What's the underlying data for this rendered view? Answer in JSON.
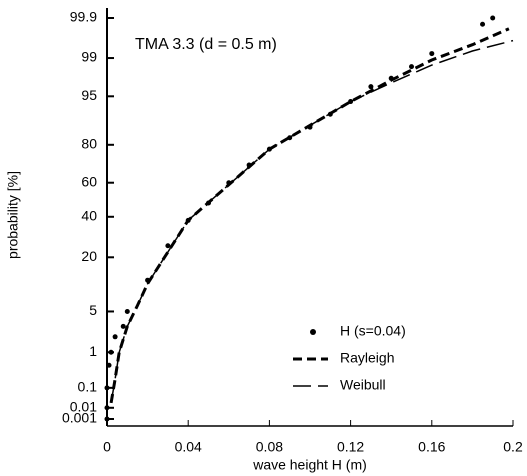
{
  "chart_data": {
    "type": "scatter",
    "title": "TMA 3.3 (d = 0.5 m)",
    "xlabel": "wave height H (m)",
    "ylabel": "probability [%]",
    "xlim": [
      0,
      0.2
    ],
    "xticks": [
      0,
      0.04,
      0.08,
      0.12,
      0.16,
      0.2
    ],
    "ylim": [
      0.001,
      99.9
    ],
    "yticks": [
      0.001,
      0.01,
      0.1,
      1,
      5,
      20,
      40,
      60,
      80,
      95,
      99,
      99.9
    ],
    "yscale": "probability",
    "legend": "lower right",
    "series": [
      {
        "name": "H (s=0.04)",
        "color": "#000000",
        "style": "points",
        "x": [
          0,
          0,
          0,
          0.001,
          0.002,
          0.004,
          0.008,
          0.01,
          0.02,
          0.03,
          0.04,
          0.05,
          0.06,
          0.07,
          0.08,
          0.09,
          0.1,
          0.11,
          0.12,
          0.13,
          0.14,
          0.15,
          0.16,
          0.185,
          0.19
        ],
        "values": [
          0.001,
          0.01,
          0.1,
          0.5,
          1,
          2,
          3,
          5,
          12,
          25,
          38,
          48,
          60,
          70,
          78,
          83,
          87,
          91,
          94,
          96.5,
          97.5,
          98.5,
          99.2,
          99.85,
          99.9
        ]
      },
      {
        "name": "Rayleigh",
        "color": "#000000",
        "style": "dashed",
        "x": [
          0.002,
          0.004,
          0.006,
          0.01,
          0.015,
          0.02,
          0.04,
          0.08,
          0.12,
          0.14,
          0.16,
          0.18,
          0.198
        ],
        "values": [
          0.02,
          0.2,
          1,
          3,
          6,
          11,
          38,
          78,
          94,
          97.3,
          98.9,
          99.5,
          99.8
        ]
      },
      {
        "name": "Weibull",
        "color": "#000000",
        "style": "longdash",
        "x": [
          0.002,
          0.004,
          0.006,
          0.01,
          0.015,
          0.02,
          0.04,
          0.08,
          0.12,
          0.14,
          0.16,
          0.18,
          0.2
        ],
        "values": [
          0.02,
          0.2,
          1,
          3,
          6,
          11,
          38,
          78,
          94,
          97,
          98.6,
          99.3,
          99.6
        ]
      }
    ]
  }
}
